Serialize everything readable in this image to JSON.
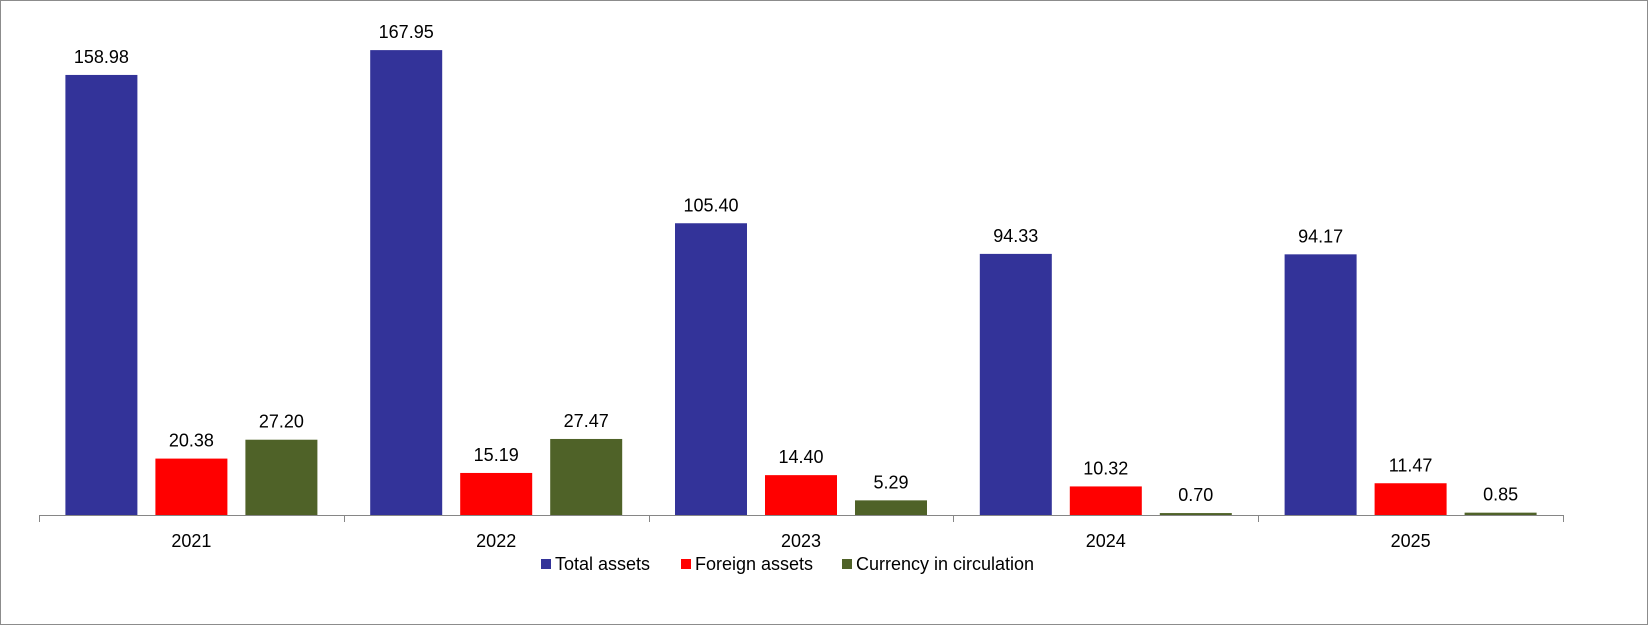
{
  "chart_data": {
    "type": "bar",
    "title": "",
    "xlabel": "",
    "ylabel": "",
    "ylim": [
      0,
      180
    ],
    "grid": false,
    "legend_position": "bottom",
    "categories": [
      "2021",
      "2022",
      "2023",
      "2024",
      "2025"
    ],
    "series": [
      {
        "name": "Total assets",
        "color": "#333399",
        "values": [
          158.98,
          167.95,
          105.4,
          94.33,
          94.17
        ],
        "labels": [
          "158.98",
          "167.95",
          "105.40",
          "94.33",
          "94.17"
        ]
      },
      {
        "name": "Foreign assets",
        "color": "#ff0000",
        "values": [
          20.38,
          15.19,
          14.4,
          10.32,
          11.47
        ],
        "labels": [
          "20.38",
          "15.19",
          "14.40",
          "10.32",
          "11.47"
        ]
      },
      {
        "name": "Currency in circulation",
        "color": "#4f6228",
        "values": [
          27.2,
          27.47,
          5.29,
          0.7,
          0.85
        ],
        "labels": [
          "27.20",
          "27.47",
          "5.29",
          "0.70",
          "0.85"
        ]
      }
    ]
  }
}
